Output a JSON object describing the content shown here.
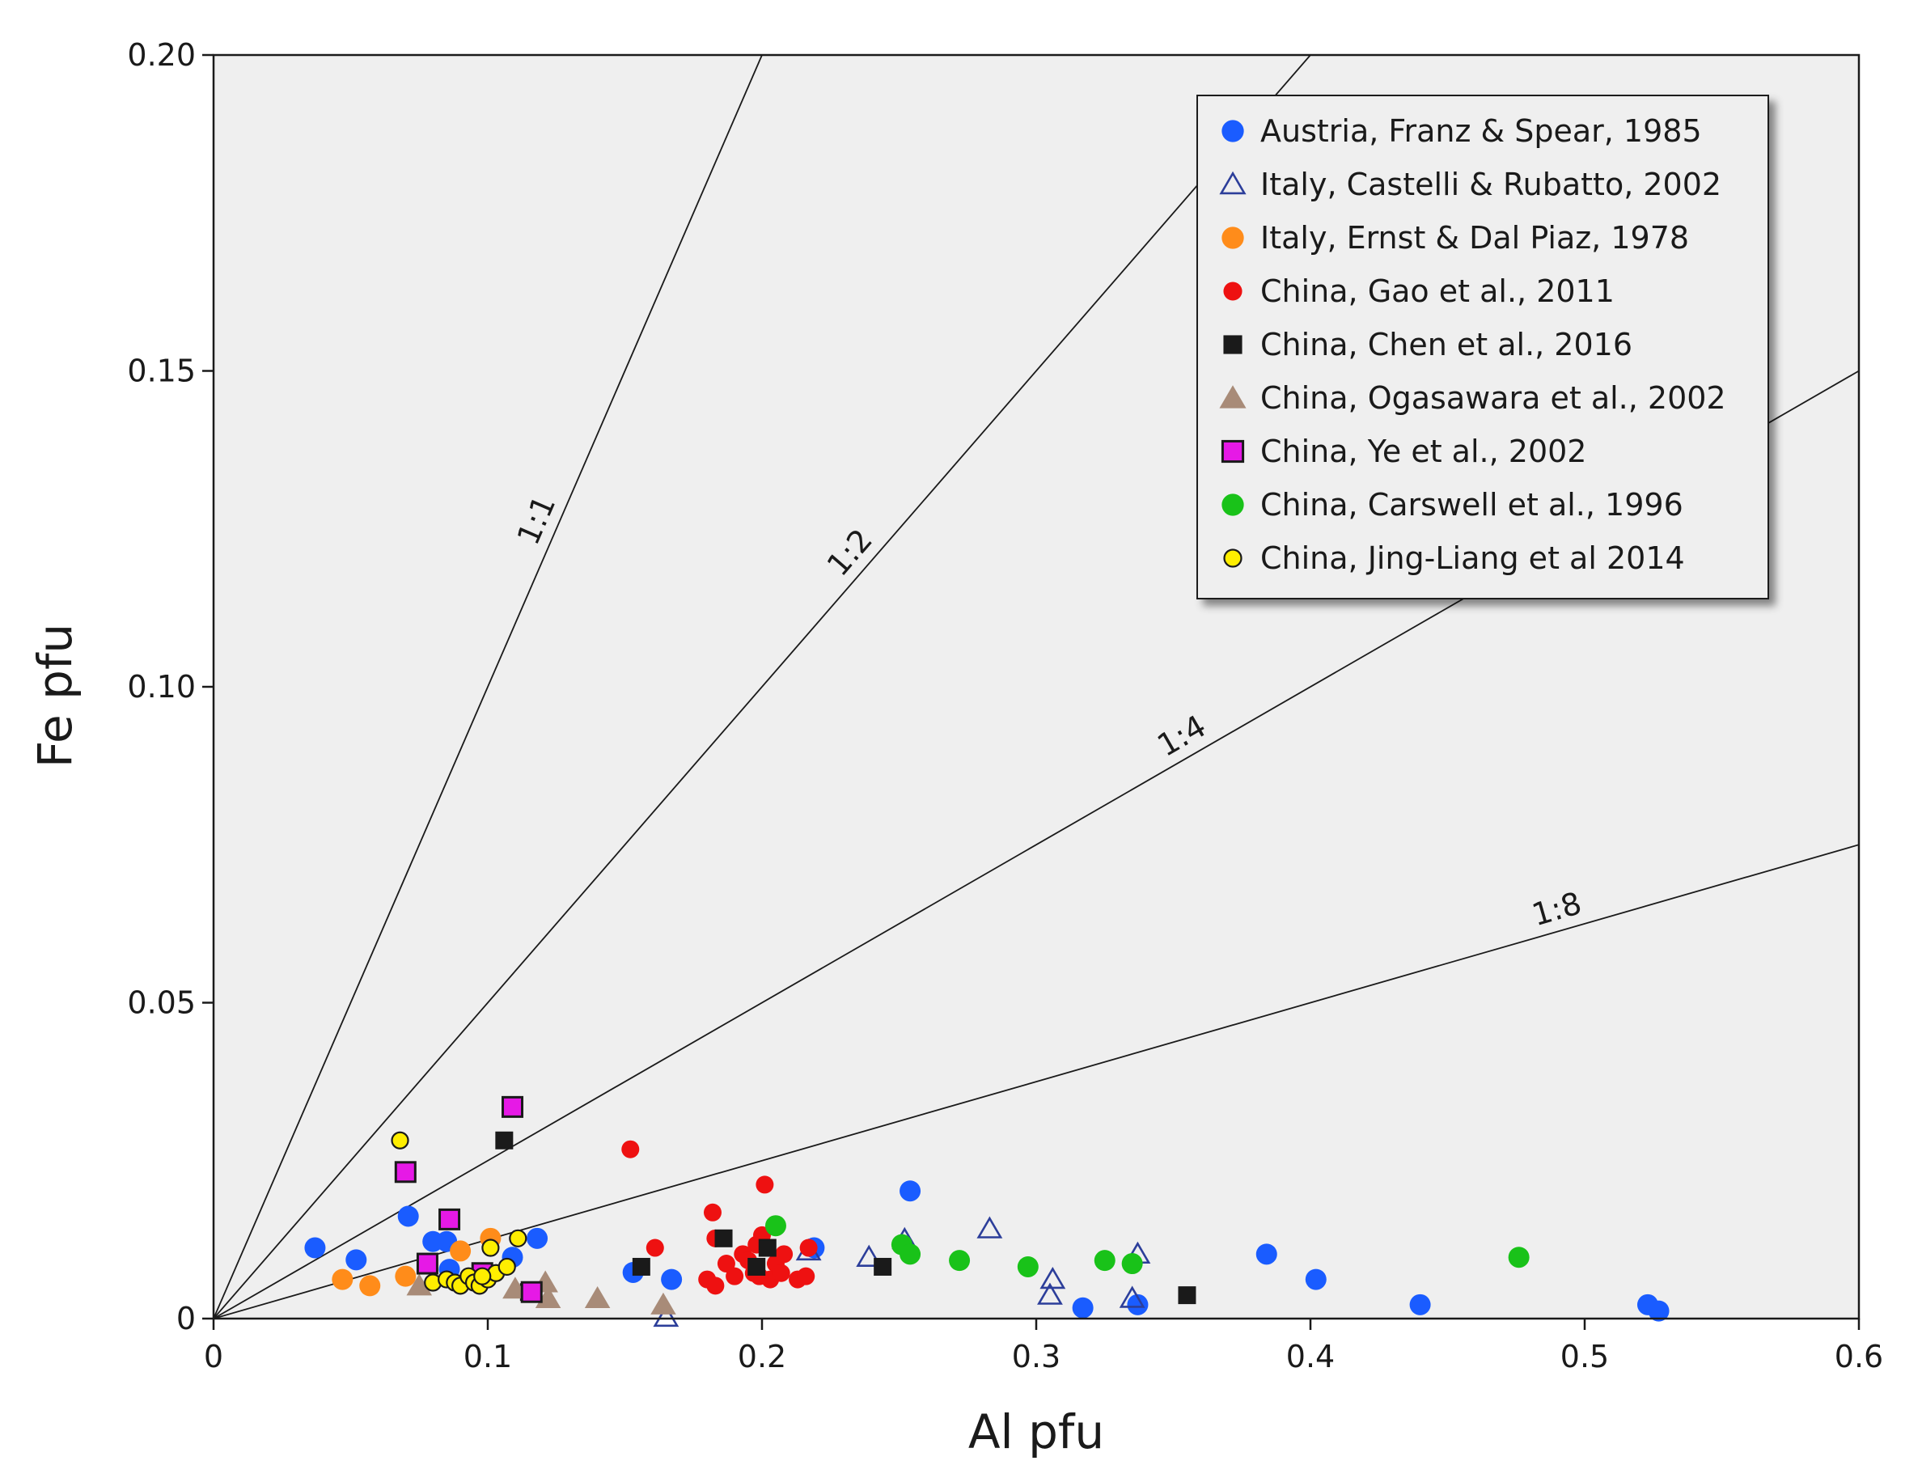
{
  "chart_data": {
    "type": "scatter",
    "title": "",
    "xlabel": "Al  pfu",
    "ylabel": "Fe  pfu",
    "xlim": [
      0,
      0.6
    ],
    "ylim": [
      0,
      0.2
    ],
    "xticks": [
      "0",
      "0.1",
      "0.2",
      "0.3",
      "0.4",
      "0.5",
      "0.6"
    ],
    "yticks": [
      "0",
      "0.05",
      "0.10",
      "0.15",
      "0.20"
    ],
    "grid": false,
    "legend_position": "top-right",
    "reference_lines": [
      {
        "label": "1:1",
        "slope": 1.0
      },
      {
        "label": "1:2",
        "slope": 0.5
      },
      {
        "label": "1:4",
        "slope": 0.25
      },
      {
        "label": "1:8",
        "slope": 0.125
      }
    ],
    "series": [
      {
        "name": "Austria, Franz & Spear, 1985",
        "marker": "circle",
        "color": "#1a5cff",
        "points": [
          [
            0.037,
            0.0112
          ],
          [
            0.052,
            0.0093
          ],
          [
            0.071,
            0.0162
          ],
          [
            0.08,
            0.0122
          ],
          [
            0.085,
            0.0122
          ],
          [
            0.086,
            0.0078
          ],
          [
            0.109,
            0.0097
          ],
          [
            0.118,
            0.0127
          ],
          [
            0.153,
            0.0073
          ],
          [
            0.167,
            0.0062
          ],
          [
            0.219,
            0.0112
          ],
          [
            0.254,
            0.0202
          ],
          [
            0.317,
            0.0017
          ],
          [
            0.337,
            0.0022
          ],
          [
            0.384,
            0.0102
          ],
          [
            0.402,
            0.0062
          ],
          [
            0.44,
            0.0022
          ],
          [
            0.523,
            0.0022
          ],
          [
            0.527,
            0.0012
          ]
        ]
      },
      {
        "name": "Italy, Castelli & Rubatto, 2002",
        "marker": "triangle-open",
        "color": "#2c3e9a",
        "points": [
          [
            0.165,
            0.0002
          ],
          [
            0.217,
            0.0107
          ],
          [
            0.239,
            0.0097
          ],
          [
            0.252,
            0.0125
          ],
          [
            0.283,
            0.0142
          ],
          [
            0.305,
            0.0037
          ],
          [
            0.306,
            0.0062
          ],
          [
            0.335,
            0.0032
          ],
          [
            0.337,
            0.0102
          ]
        ]
      },
      {
        "name": "Italy, Ernst & Dal Piaz, 1978",
        "marker": "circle",
        "color": "#ff8c1a",
        "points": [
          [
            0.047,
            0.0062
          ],
          [
            0.057,
            0.0052
          ],
          [
            0.07,
            0.0067
          ],
          [
            0.09,
            0.0107
          ],
          [
            0.101,
            0.0127
          ]
        ]
      },
      {
        "name": "China, Gao et al., 2011",
        "marker": "circle-small",
        "color": "#ee1111",
        "points": [
          [
            0.152,
            0.0268
          ],
          [
            0.161,
            0.0112
          ],
          [
            0.182,
            0.0168
          ],
          [
            0.183,
            0.0127
          ],
          [
            0.18,
            0.0062
          ],
          [
            0.183,
            0.0052
          ],
          [
            0.187,
            0.0087
          ],
          [
            0.19,
            0.0067
          ],
          [
            0.193,
            0.0102
          ],
          [
            0.197,
            0.0072
          ],
          [
            0.198,
            0.0117
          ],
          [
            0.2,
            0.0132
          ],
          [
            0.201,
            0.0212
          ],
          [
            0.203,
            0.0062
          ],
          [
            0.205,
            0.0087
          ],
          [
            0.207,
            0.0072
          ],
          [
            0.208,
            0.0102
          ],
          [
            0.213,
            0.0062
          ],
          [
            0.216,
            0.0067
          ],
          [
            0.217,
            0.0112
          ],
          [
            0.195,
            0.0092
          ],
          [
            0.199,
            0.0067
          ]
        ]
      },
      {
        "name": "China, Chen et al., 2016",
        "marker": "square",
        "color": "#1a1a1a",
        "points": [
          [
            0.106,
            0.0282
          ],
          [
            0.115,
            0.0042
          ],
          [
            0.156,
            0.0082
          ],
          [
            0.186,
            0.0127
          ],
          [
            0.198,
            0.0082
          ],
          [
            0.202,
            0.0112
          ],
          [
            0.244,
            0.0082
          ],
          [
            0.355,
            0.0037
          ]
        ]
      },
      {
        "name": "China, Ogasawara et al., 2002",
        "marker": "triangle",
        "color": "#a88b78",
        "points": [
          [
            0.075,
            0.0052
          ],
          [
            0.11,
            0.0047
          ],
          [
            0.121,
            0.0057
          ],
          [
            0.122,
            0.0032
          ],
          [
            0.14,
            0.0032
          ],
          [
            0.164,
            0.0022
          ]
        ]
      },
      {
        "name": "China, Ye et al., 2002",
        "marker": "square-outlined",
        "color": "#e619e6",
        "points": [
          [
            0.07,
            0.0232
          ],
          [
            0.078,
            0.0087
          ],
          [
            0.086,
            0.0157
          ],
          [
            0.098,
            0.0072
          ],
          [
            0.109,
            0.0335
          ],
          [
            0.116,
            0.0042
          ]
        ]
      },
      {
        "name": "China, Carswell et al., 1996",
        "marker": "circle",
        "color": "#19c219",
        "points": [
          [
            0.205,
            0.0147
          ],
          [
            0.251,
            0.0117
          ],
          [
            0.254,
            0.0102
          ],
          [
            0.272,
            0.0092
          ],
          [
            0.297,
            0.0082
          ],
          [
            0.325,
            0.0092
          ],
          [
            0.335,
            0.0087
          ],
          [
            0.476,
            0.0097
          ]
        ]
      },
      {
        "name": "China, Jing-Liang et al 2014",
        "marker": "circle-outlined",
        "color": "#ffee00",
        "points": [
          [
            0.068,
            0.0282
          ],
          [
            0.08,
            0.0057
          ],
          [
            0.085,
            0.0062
          ],
          [
            0.088,
            0.0057
          ],
          [
            0.09,
            0.0052
          ],
          [
            0.093,
            0.0067
          ],
          [
            0.095,
            0.0057
          ],
          [
            0.097,
            0.0052
          ],
          [
            0.1,
            0.0062
          ],
          [
            0.101,
            0.0112
          ],
          [
            0.103,
            0.0072
          ],
          [
            0.107,
            0.0082
          ],
          [
            0.111,
            0.0127
          ],
          [
            0.098,
            0.0067
          ]
        ]
      }
    ]
  }
}
